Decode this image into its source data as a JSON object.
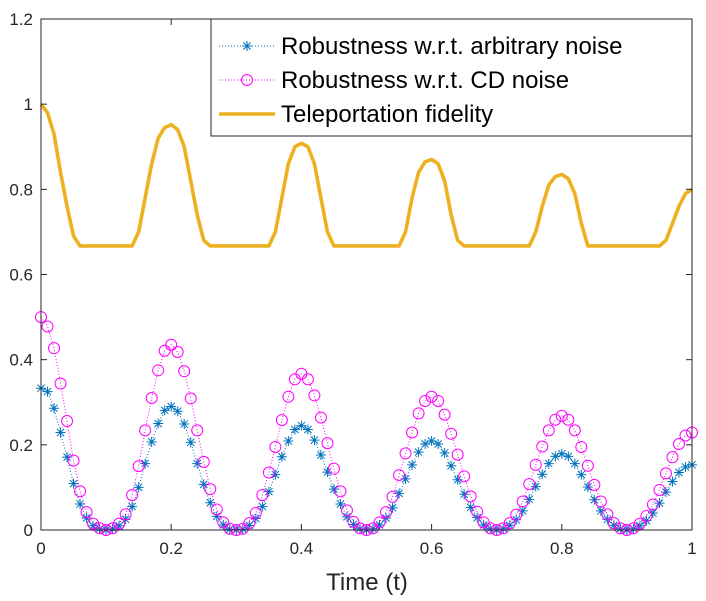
{
  "chart_data": {
    "type": "line",
    "title": "",
    "xlabel": "Time (t)",
    "ylabel": "",
    "xlim": [
      0,
      1
    ],
    "ylim": [
      0,
      1.2
    ],
    "xticks": [
      0,
      0.2,
      0.4,
      0.6,
      0.8,
      1
    ],
    "xtick_labels": [
      "0",
      "0.2",
      "0.4",
      "0.6",
      "0.8",
      "1"
    ],
    "yticks": [
      0,
      0.2,
      0.4,
      0.6,
      0.8,
      1,
      1.2
    ],
    "ytick_labels": [
      "0",
      "0.2",
      "0.4",
      "0.6",
      "0.8",
      "1",
      "1.2"
    ],
    "grid": false,
    "legend_position": "top-right",
    "series": [
      {
        "name": "Robustness w.r.t. arbitrary noise",
        "style": "dotted-asterisk",
        "color": "#0072BD",
        "x": [
          0,
          0.01,
          0.02,
          0.03,
          0.04,
          0.05,
          0.06,
          0.07,
          0.08,
          0.09,
          0.1,
          0.11,
          0.12,
          0.13,
          0.14,
          0.15,
          0.16,
          0.17,
          0.18,
          0.19,
          0.2,
          0.21,
          0.22,
          0.23,
          0.24,
          0.25,
          0.26,
          0.27,
          0.28,
          0.29,
          0.3,
          0.31,
          0.32,
          0.33,
          0.34,
          0.35,
          0.36,
          0.37,
          0.38,
          0.39,
          0.4,
          0.41,
          0.42,
          0.43,
          0.44,
          0.45,
          0.46,
          0.47,
          0.48,
          0.49,
          0.5,
          0.51,
          0.52,
          0.53,
          0.54,
          0.55,
          0.56,
          0.57,
          0.58,
          0.59,
          0.6,
          0.61,
          0.62,
          0.63,
          0.64,
          0.65,
          0.66,
          0.67,
          0.68,
          0.69,
          0.7,
          0.71,
          0.72,
          0.73,
          0.74,
          0.75,
          0.76,
          0.77,
          0.78,
          0.79,
          0.8,
          0.81,
          0.82,
          0.83,
          0.84,
          0.85,
          0.86,
          0.87,
          0.88,
          0.89,
          0.9,
          0.91,
          0.92,
          0.93,
          0.94,
          0.95,
          0.96,
          0.97,
          0.98,
          0.99,
          1
        ],
        "values": [
          0.333,
          0.325,
          0.286,
          0.229,
          0.171,
          0.109,
          0.061,
          0.028,
          0.01,
          0.003,
          0.0,
          0.003,
          0.01,
          0.025,
          0.055,
          0.1,
          0.156,
          0.207,
          0.25,
          0.281,
          0.29,
          0.279,
          0.249,
          0.206,
          0.156,
          0.107,
          0.064,
          0.032,
          0.012,
          0.002,
          0.0,
          0.002,
          0.011,
          0.027,
          0.055,
          0.09,
          0.13,
          0.172,
          0.209,
          0.236,
          0.245,
          0.236,
          0.211,
          0.176,
          0.136,
          0.096,
          0.061,
          0.031,
          0.013,
          0.003,
          0.0,
          0.003,
          0.012,
          0.028,
          0.052,
          0.086,
          0.12,
          0.153,
          0.183,
          0.202,
          0.209,
          0.202,
          0.181,
          0.151,
          0.118,
          0.084,
          0.053,
          0.029,
          0.012,
          0.003,
          0.0,
          0.003,
          0.011,
          0.024,
          0.045,
          0.072,
          0.102,
          0.131,
          0.156,
          0.173,
          0.179,
          0.173,
          0.156,
          0.13,
          0.101,
          0.071,
          0.045,
          0.025,
          0.011,
          0.003,
          0.0,
          0.003,
          0.01,
          0.022,
          0.04,
          0.063,
          0.089,
          0.114,
          0.135,
          0.148,
          0.153
        ]
      },
      {
        "name": "Robustness w.r.t. CD noise",
        "style": "dotted-circle",
        "color": "#FF00FF",
        "x": [
          0,
          0.01,
          0.02,
          0.03,
          0.04,
          0.05,
          0.06,
          0.07,
          0.08,
          0.09,
          0.1,
          0.11,
          0.12,
          0.13,
          0.14,
          0.15,
          0.16,
          0.17,
          0.18,
          0.19,
          0.2,
          0.21,
          0.22,
          0.23,
          0.24,
          0.25,
          0.26,
          0.27,
          0.28,
          0.29,
          0.3,
          0.31,
          0.32,
          0.33,
          0.34,
          0.35,
          0.36,
          0.37,
          0.38,
          0.39,
          0.4,
          0.41,
          0.42,
          0.43,
          0.44,
          0.45,
          0.46,
          0.47,
          0.48,
          0.49,
          0.5,
          0.51,
          0.52,
          0.53,
          0.54,
          0.55,
          0.56,
          0.57,
          0.58,
          0.59,
          0.6,
          0.61,
          0.62,
          0.63,
          0.64,
          0.65,
          0.66,
          0.67,
          0.68,
          0.69,
          0.7,
          0.71,
          0.72,
          0.73,
          0.74,
          0.75,
          0.76,
          0.77,
          0.78,
          0.79,
          0.8,
          0.81,
          0.82,
          0.83,
          0.84,
          0.85,
          0.86,
          0.87,
          0.88,
          0.89,
          0.9,
          0.91,
          0.92,
          0.93,
          0.94,
          0.95,
          0.96,
          0.97,
          0.98,
          0.99,
          1
        ],
        "values": [
          0.5,
          0.478,
          0.427,
          0.344,
          0.256,
          0.163,
          0.091,
          0.042,
          0.015,
          0.004,
          0.0,
          0.004,
          0.015,
          0.037,
          0.082,
          0.15,
          0.234,
          0.31,
          0.375,
          0.421,
          0.435,
          0.418,
          0.373,
          0.309,
          0.234,
          0.16,
          0.096,
          0.048,
          0.018,
          0.003,
          0.0,
          0.003,
          0.016,
          0.04,
          0.082,
          0.135,
          0.195,
          0.258,
          0.313,
          0.354,
          0.367,
          0.354,
          0.316,
          0.264,
          0.204,
          0.144,
          0.091,
          0.046,
          0.019,
          0.004,
          0.0,
          0.004,
          0.018,
          0.042,
          0.078,
          0.129,
          0.18,
          0.229,
          0.274,
          0.303,
          0.313,
          0.303,
          0.271,
          0.226,
          0.177,
          0.126,
          0.079,
          0.043,
          0.018,
          0.004,
          0.0,
          0.004,
          0.016,
          0.036,
          0.067,
          0.108,
          0.153,
          0.196,
          0.234,
          0.259,
          0.268,
          0.259,
          0.234,
          0.195,
          0.151,
          0.106,
          0.067,
          0.037,
          0.016,
          0.004,
          0.0,
          0.004,
          0.015,
          0.033,
          0.06,
          0.094,
          0.133,
          0.171,
          0.202,
          0.222,
          0.229
        ]
      },
      {
        "name": "Teleportation fidelity",
        "style": "solid",
        "color": "#EDB120",
        "x": [
          0,
          0.01,
          0.02,
          0.03,
          0.04,
          0.05,
          0.06,
          0.07,
          0.08,
          0.09,
          0.1,
          0.11,
          0.12,
          0.13,
          0.14,
          0.15,
          0.16,
          0.17,
          0.18,
          0.19,
          0.2,
          0.21,
          0.22,
          0.23,
          0.24,
          0.25,
          0.26,
          0.27,
          0.28,
          0.29,
          0.3,
          0.31,
          0.32,
          0.33,
          0.34,
          0.35,
          0.36,
          0.37,
          0.38,
          0.39,
          0.4,
          0.41,
          0.42,
          0.43,
          0.44,
          0.45,
          0.46,
          0.47,
          0.48,
          0.49,
          0.5,
          0.51,
          0.52,
          0.53,
          0.54,
          0.55,
          0.56,
          0.57,
          0.58,
          0.59,
          0.6,
          0.61,
          0.62,
          0.63,
          0.64,
          0.65,
          0.66,
          0.67,
          0.68,
          0.69,
          0.7,
          0.71,
          0.72,
          0.73,
          0.74,
          0.75,
          0.76,
          0.77,
          0.78,
          0.79,
          0.8,
          0.81,
          0.82,
          0.83,
          0.84,
          0.85,
          0.86,
          0.87,
          0.88,
          0.89,
          0.9,
          0.91,
          0.92,
          0.93,
          0.94,
          0.95,
          0.96,
          0.97,
          0.98,
          0.99,
          1
        ],
        "values": [
          1.0,
          0.98,
          0.93,
          0.84,
          0.76,
          0.69,
          0.667,
          0.667,
          0.667,
          0.667,
          0.667,
          0.667,
          0.667,
          0.667,
          0.667,
          0.7,
          0.78,
          0.86,
          0.92,
          0.945,
          0.952,
          0.94,
          0.9,
          0.82,
          0.74,
          0.68,
          0.667,
          0.667,
          0.667,
          0.667,
          0.667,
          0.667,
          0.667,
          0.667,
          0.667,
          0.667,
          0.7,
          0.78,
          0.86,
          0.9,
          0.908,
          0.9,
          0.86,
          0.78,
          0.7,
          0.667,
          0.667,
          0.667,
          0.667,
          0.667,
          0.667,
          0.667,
          0.667,
          0.667,
          0.667,
          0.667,
          0.7,
          0.78,
          0.84,
          0.865,
          0.87,
          0.86,
          0.82,
          0.74,
          0.68,
          0.667,
          0.667,
          0.667,
          0.667,
          0.667,
          0.667,
          0.667,
          0.667,
          0.667,
          0.667,
          0.667,
          0.7,
          0.76,
          0.81,
          0.83,
          0.835,
          0.825,
          0.79,
          0.72,
          0.667,
          0.667,
          0.667,
          0.667,
          0.667,
          0.667,
          0.667,
          0.667,
          0.667,
          0.667,
          0.667,
          0.667,
          0.68,
          0.72,
          0.76,
          0.79,
          0.8
        ]
      }
    ]
  }
}
